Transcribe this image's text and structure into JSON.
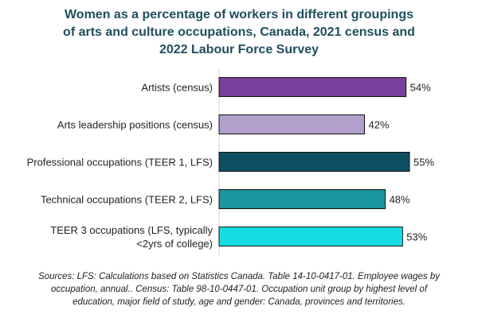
{
  "title": {
    "line1": "Women as a percentage of workers in different groupings",
    "line2": "of arts and culture occupations, Canada, 2021 census and",
    "line3": "2022 Labour Force Survey"
  },
  "chart_data": {
    "type": "bar",
    "orientation": "horizontal",
    "title": "Women as a percentage of workers in different groupings of arts and culture occupations, Canada, 2021 census and 2022 Labour Force Survey",
    "categories": [
      [
        "Artists (census)"
      ],
      [
        "Arts leadership positions (census)"
      ],
      [
        "Professional occupations (TEER 1, LFS)"
      ],
      [
        "Technical occupations (TEER 2, LFS)"
      ],
      [
        "TEER 3 occupations (LFS, typically",
        "<2yrs of college)"
      ]
    ],
    "values": [
      54,
      42,
      55,
      48,
      53
    ],
    "data_labels": [
      "54%",
      "42%",
      "55%",
      "48%",
      "53%"
    ],
    "colors": [
      "#7b3f9c",
      "#b29fcb",
      "#0d5063",
      "#1b969e",
      "#17dde3"
    ],
    "xlim": [
      0,
      60
    ],
    "grid": false,
    "legend": "none"
  },
  "source": "Sources: LFS: Calculations based on Statistics Canada. Table 14-10-0417-01. Employee wages by occupation, annual.. Census: Table 98-10-0447-01. Occupation unit group by highest level of education, major field of study, age and gender: Canada, provinces and territories."
}
